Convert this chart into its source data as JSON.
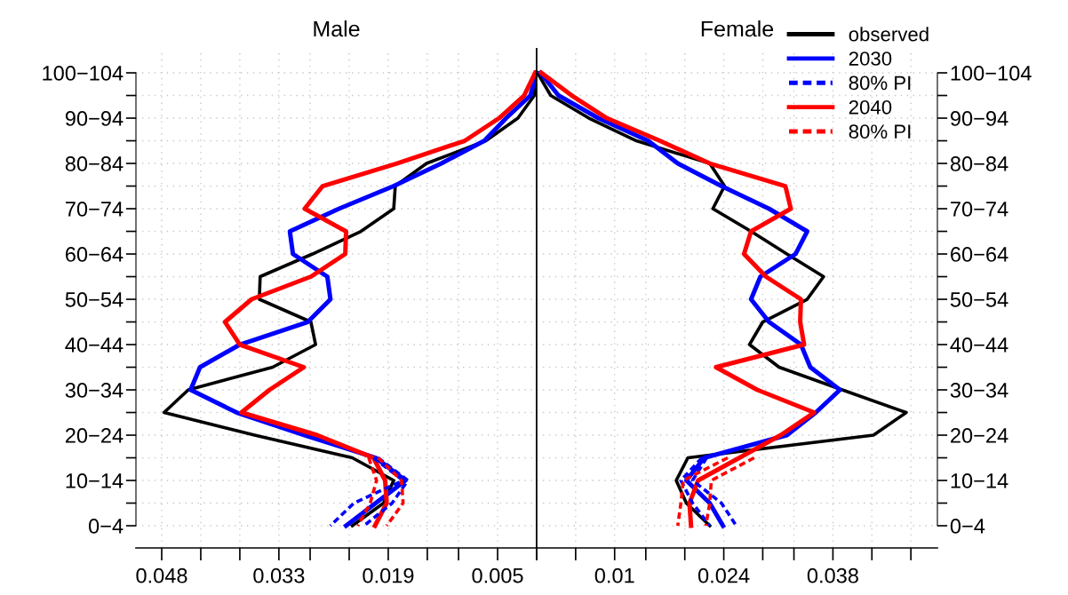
{
  "chart_data": [
    {
      "type": "line",
      "orientation": "horizontal",
      "title": "Male",
      "categories": [
        "100−104",
        null,
        "90−94",
        null,
        "80−84",
        null,
        "70−74",
        null,
        "60−64",
        null,
        "50−54",
        null,
        "40−44",
        null,
        "30−34",
        null,
        "20−24",
        null,
        "10−14",
        null,
        "0−4"
      ],
      "xlim": [
        0.0513,
        0
      ],
      "xticks": [
        0.048,
        {
          "value": 0.043,
          "label": null
        },
        {
          "value": 0.038,
          "label": null
        },
        0.033,
        {
          "value": 0.029,
          "label": null
        },
        {
          "value": 0.024,
          "label": null
        },
        0.019,
        {
          "value": 0.014,
          "label": null
        },
        {
          "value": 0.01,
          "label": null
        },
        0.005,
        {
          "value": 0,
          "label": null
        }
      ],
      "grid": true,
      "legend": "top right",
      "series": [
        {
          "name": "observed",
          "color": "#000000",
          "line_style": "solid",
          "values": [
            0.0001,
            0.0003,
            0.0024,
            0.0065,
            0.0141,
            0.0181,
            0.0183,
            0.0225,
            0.0287,
            0.0354,
            0.0355,
            0.0289,
            0.0283,
            0.0338,
            0.0446,
            0.0477,
            0.0361,
            0.0236,
            0.0183,
            0.0196,
            0.0236
          ]
        },
        {
          "name": "2030",
          "color": "#0000ff",
          "line_style": "solid",
          "values": [
            0.0,
            0.0008,
            0.0039,
            0.0067,
            0.0122,
            0.0183,
            0.0253,
            0.0316,
            0.0312,
            0.0268,
            0.0264,
            0.0293,
            0.038,
            0.0431,
            0.0443,
            0.0384,
            0.0297,
            0.0206,
            0.0168,
            0.0206,
            0.0244
          ]
        },
        {
          "name": "80% PI",
          "color": "#0000ff",
          "line_style": "dashed",
          "values": [
            null,
            null,
            null,
            null,
            null,
            null,
            null,
            null,
            null,
            null,
            null,
            null,
            null,
            null,
            null,
            null,
            null,
            0.0209,
            0.0171,
            0.0234,
            0.0264
          ]
        },
        {
          "color": "#0000ff",
          "line_style": "dashed",
          "values": [
            null,
            null,
            null,
            null,
            null,
            null,
            null,
            null,
            null,
            null,
            null,
            null,
            null,
            null,
            null,
            null,
            null,
            0.0203,
            0.0165,
            0.0185,
            0.0221
          ]
        },
        {
          "name": "2040",
          "color": "#ff0000",
          "line_style": "solid",
          "values": [
            0.0002,
            0.0016,
            0.0048,
            0.0092,
            0.0179,
            0.0274,
            0.0297,
            0.0244,
            0.0245,
            0.0289,
            0.0365,
            0.0399,
            0.038,
            0.0298,
            0.0342,
            0.0378,
            0.0281,
            0.0209,
            0.0194,
            0.0192,
            0.0207
          ]
        },
        {
          "name": "80% PI",
          "color": "#ff0000",
          "line_style": "dashed",
          "values": [
            null,
            null,
            null,
            null,
            null,
            null,
            null,
            null,
            null,
            null,
            null,
            null,
            null,
            null,
            null,
            null,
            null,
            0.0215,
            0.0205,
            0.0213,
            0.0229
          ]
        },
        {
          "color": "#ff0000",
          "line_style": "dashed",
          "values": [
            null,
            null,
            null,
            null,
            null,
            null,
            null,
            null,
            null,
            null,
            null,
            null,
            null,
            null,
            null,
            null,
            null,
            0.0203,
            0.0173,
            0.0171,
            0.0192
          ]
        }
      ]
    },
    {
      "type": "line",
      "orientation": "horizontal",
      "title": "Female",
      "categories": [
        "100−104",
        null,
        "90−94",
        null,
        "80−84",
        null,
        "70−74",
        null,
        "60−64",
        null,
        "50−54",
        null,
        "40−44",
        null,
        "30−34",
        null,
        "20−24",
        null,
        "10−14",
        null,
        "0−4"
      ],
      "xlim": [
        0,
        0.0514
      ],
      "xticks": [
        {
          "value": 0,
          "label": null
        },
        {
          "value": 0.005,
          "label": null
        },
        0.01,
        {
          "value": 0.014,
          "label": null
        },
        {
          "value": 0.019,
          "label": null
        },
        0.024,
        {
          "value": 0.029,
          "label": null
        },
        {
          "value": 0.033,
          "label": null
        },
        0.038,
        {
          "value": 0.043,
          "label": null
        },
        {
          "value": 0.048,
          "label": null
        }
      ],
      "grid": true,
      "series": [
        {
          "color": "#000000",
          "line_style": "solid",
          "values": [
            0.0001,
            0.0018,
            0.0067,
            0.0128,
            0.0222,
            0.0241,
            0.0226,
            0.0275,
            0.0321,
            0.0368,
            0.0347,
            0.029,
            0.0273,
            0.0311,
            0.0392,
            0.0474,
            0.0432,
            0.0194,
            0.0179,
            0.0192,
            0.0222
          ]
        },
        {
          "color": "#0000ff",
          "line_style": "solid",
          "values": [
            0.0005,
            0.0028,
            0.0079,
            0.0143,
            0.0181,
            0.0237,
            0.0298,
            0.0347,
            0.0332,
            0.0287,
            0.0275,
            0.0298,
            0.0339,
            0.0351,
            0.0389,
            0.0358,
            0.0321,
            0.0215,
            0.0192,
            0.0222,
            0.0239
          ]
        },
        {
          "color": "#0000ff",
          "line_style": "dashed",
          "values": [
            null,
            null,
            null,
            null,
            null,
            null,
            null,
            null,
            null,
            null,
            null,
            null,
            null,
            null,
            null,
            null,
            null,
            0.0218,
            0.02,
            0.0237,
            0.0256
          ]
        },
        {
          "color": "#0000ff",
          "line_style": "dashed",
          "values": [
            null,
            null,
            null,
            null,
            null,
            null,
            null,
            null,
            null,
            null,
            null,
            null,
            null,
            null,
            null,
            null,
            null,
            0.0212,
            0.0185,
            0.02,
            0.0222
          ]
        },
        {
          "color": "#ff0000",
          "line_style": "solid",
          "values": [
            0.0006,
            0.0045,
            0.009,
            0.0158,
            0.0222,
            0.0319,
            0.0326,
            0.0275,
            0.0266,
            0.0294,
            0.0339,
            0.0338,
            0.0343,
            0.023,
            0.0283,
            0.0356,
            0.0313,
            0.026,
            0.0207,
            0.0196,
            0.0198
          ]
        },
        {
          "color": "#ff0000",
          "line_style": "dashed",
          "values": [
            null,
            null,
            null,
            null,
            null,
            null,
            null,
            null,
            null,
            null,
            null,
            null,
            null,
            null,
            null,
            null,
            null,
            0.0279,
            0.0224,
            0.0222,
            0.0217
          ]
        },
        {
          "color": "#ff0000",
          "line_style": "dashed",
          "values": [
            null,
            null,
            null,
            null,
            null,
            null,
            null,
            null,
            null,
            null,
            null,
            null,
            null,
            null,
            null,
            null,
            null,
            0.0245,
            0.0188,
            0.0185,
            0.0181
          ]
        }
      ]
    }
  ]
}
